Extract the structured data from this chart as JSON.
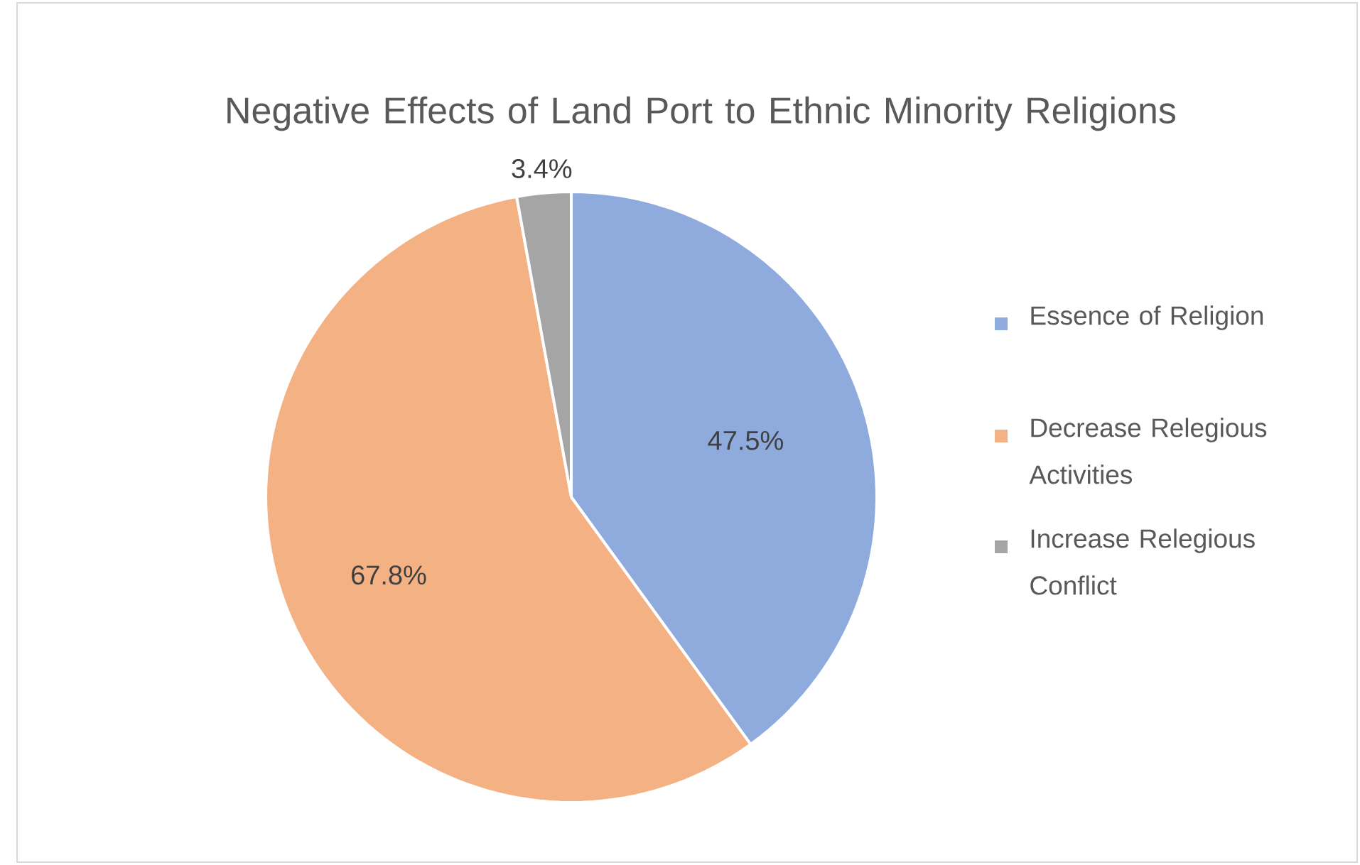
{
  "chart_data": {
    "type": "pie",
    "title": "Negative Effects of Land Port to Ethnic Minority Religions",
    "categories": [
      "Essence of Religion",
      "Decrease Relegious Activities",
      "Increase Relegious Conflict"
    ],
    "values": [
      47.5,
      67.8,
      3.4
    ],
    "colors": [
      "#8faadc",
      "#f4b183",
      "#a5a5a5"
    ],
    "value_labels": [
      "47.5%",
      "67.8%",
      "3.4%"
    ],
    "legend": "right"
  }
}
